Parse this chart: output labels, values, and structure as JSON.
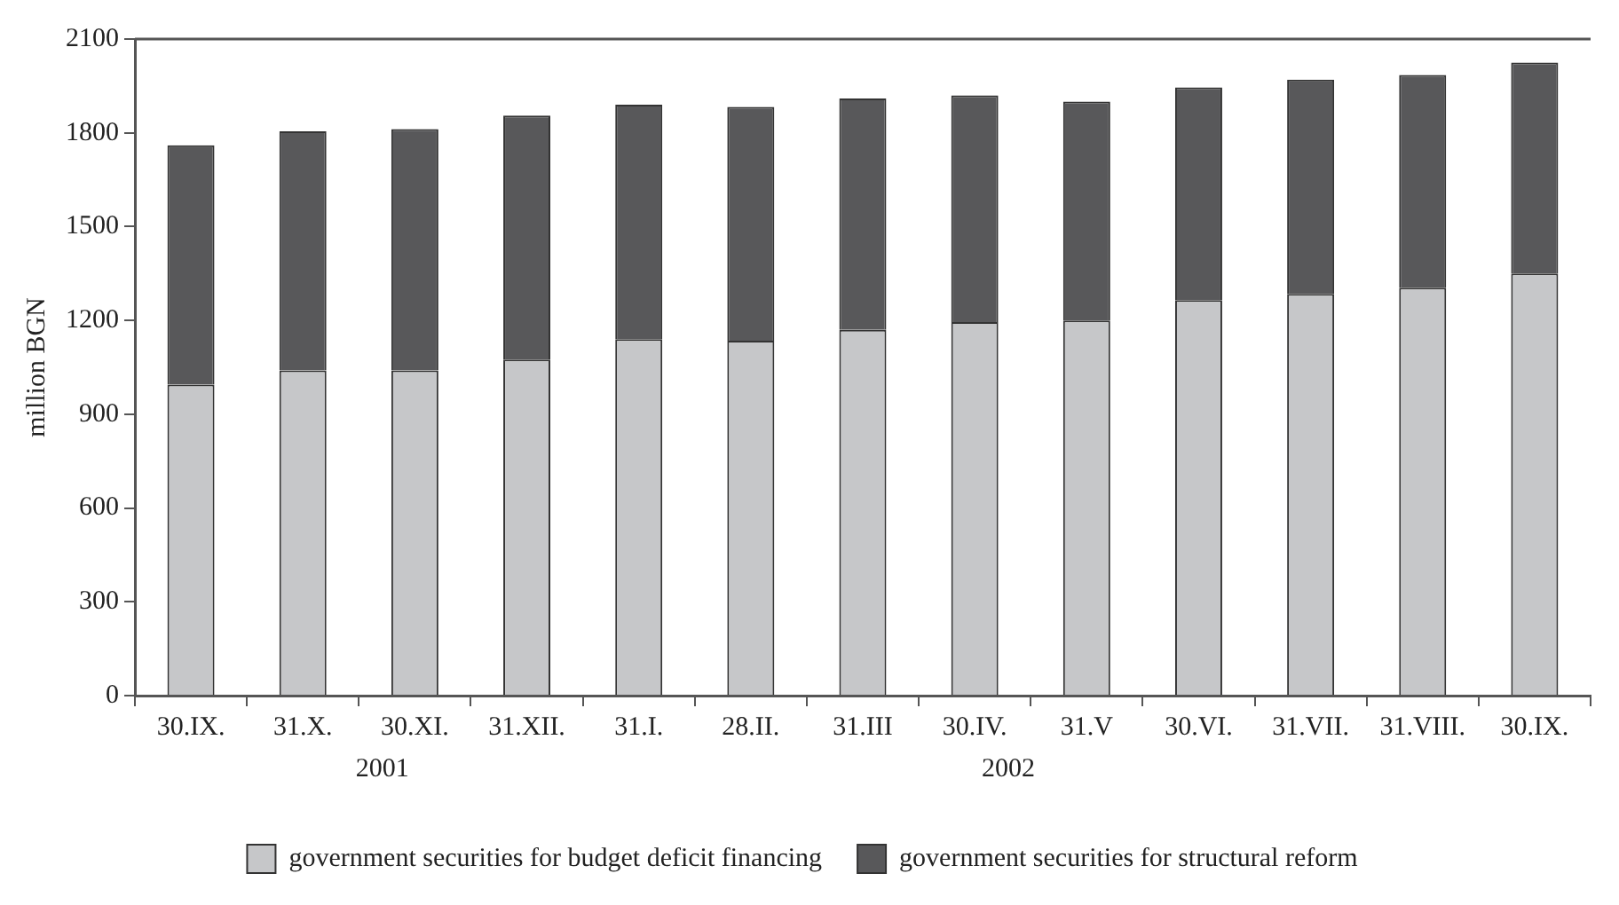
{
  "chart_data": {
    "type": "bar",
    "stacked": true,
    "ylabel": "million BGN",
    "categories": [
      "30.IX.",
      "31.X.",
      "30.XI.",
      "31.XII.",
      "31.I.",
      "28.II.",
      "31.III",
      "30.IV.",
      "31.V",
      "30.VI.",
      "31.VII.",
      "31.VIII.",
      "30.IX."
    ],
    "series": [
      {
        "name": "government securities for budget deficit financing",
        "color": "#c6c7c9",
        "values": [
          995,
          1040,
          1040,
          1075,
          1140,
          1135,
          1170,
          1195,
          1200,
          1265,
          1285,
          1305,
          1350
        ]
      },
      {
        "name": "government securities for structural reform",
        "color": "#58585a",
        "values": [
          765,
          765,
          772,
          780,
          750,
          748,
          740,
          725,
          700,
          680,
          685,
          680,
          675
        ]
      }
    ],
    "ylim": [
      0,
      2100
    ],
    "yticks": [
      0,
      300,
      600,
      900,
      1200,
      1500,
      1800,
      2100
    ],
    "grid": false,
    "legend": "bottom",
    "annotations": [
      "2001",
      "2002"
    ]
  }
}
